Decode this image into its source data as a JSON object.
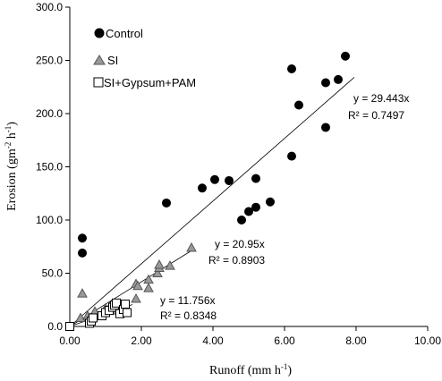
{
  "chart_data": {
    "type": "scatter",
    "xlabel_main": "Runoff (mm h",
    "xlabel_sup": "-1",
    "xlabel_tail": ")",
    "ylabel_main": "Erosion (gm",
    "ylabel_sup1": "-2",
    "ylabel_mid": " h",
    "ylabel_sup2": "-1",
    "ylabel_tail": ")",
    "xlim": [
      0,
      10
    ],
    "ylim": [
      0,
      300
    ],
    "xticks": [
      "0.00",
      "2.00",
      "4.00",
      "6.00",
      "8.00",
      "10.00"
    ],
    "xtick_values": [
      0,
      2,
      4,
      6,
      8,
      10
    ],
    "yticks": [
      "0.0",
      "50.0",
      "100.0",
      "150.0",
      "200.0",
      "250.0",
      "300.0"
    ],
    "ytick_values": [
      0,
      50,
      100,
      150,
      200,
      250,
      300
    ],
    "grid": false,
    "legend_position": "top-left",
    "series": [
      {
        "name": "Control",
        "marker": "circle",
        "color": "#000000",
        "points": [
          [
            0.35,
            83
          ],
          [
            0.35,
            69
          ],
          [
            2.7,
            116
          ],
          [
            3.7,
            130
          ],
          [
            4.05,
            138
          ],
          [
            4.45,
            137
          ],
          [
            4.8,
            100
          ],
          [
            5.0,
            108
          ],
          [
            5.2,
            112
          ],
          [
            5.2,
            139
          ],
          [
            5.6,
            117
          ],
          [
            6.2,
            160
          ],
          [
            6.2,
            242
          ],
          [
            6.4,
            208
          ],
          [
            7.15,
            187
          ],
          [
            7.15,
            229
          ],
          [
            7.5,
            232
          ],
          [
            7.7,
            254
          ]
        ],
        "trend_label": "y = 29.443x",
        "r2_label": "R² = 0.7497",
        "slope": 29.443,
        "trend_x_end": 7.95
      },
      {
        "name": "SI",
        "marker": "triangle",
        "color": "#999999",
        "points": [
          [
            0.35,
            31
          ],
          [
            0.3,
            8
          ],
          [
            0.5,
            10
          ],
          [
            0.7,
            12
          ],
          [
            0.7,
            14
          ],
          [
            1.0,
            17
          ],
          [
            1.15,
            20
          ],
          [
            1.2,
            15
          ],
          [
            1.85,
            26
          ],
          [
            1.85,
            40
          ],
          [
            1.9,
            38
          ],
          [
            2.2,
            36
          ],
          [
            2.2,
            44
          ],
          [
            2.45,
            50
          ],
          [
            2.5,
            55
          ],
          [
            2.5,
            58
          ],
          [
            2.8,
            57
          ],
          [
            3.4,
            74
          ]
        ],
        "trend_label": "y = 20.95x",
        "r2_label": "R² = 0.8903",
        "slope": 20.95,
        "trend_x_end": 3.45
      },
      {
        "name": "SI+Gypsum+PAM",
        "marker": "square",
        "color": "#ffffff",
        "points": [
          [
            0.0,
            0
          ],
          [
            0.55,
            3
          ],
          [
            0.6,
            5
          ],
          [
            0.65,
            8
          ],
          [
            0.9,
            10
          ],
          [
            1.0,
            13
          ],
          [
            1.1,
            15
          ],
          [
            1.2,
            18
          ],
          [
            1.25,
            20
          ],
          [
            1.3,
            22
          ],
          [
            1.4,
            12
          ],
          [
            1.5,
            16
          ],
          [
            1.55,
            21
          ],
          [
            1.6,
            13
          ]
        ],
        "trend_label": "y = 11.756x",
        "r2_label": "R² = 0.8348",
        "slope": 11.756,
        "trend_x_end": 1.75
      }
    ]
  }
}
